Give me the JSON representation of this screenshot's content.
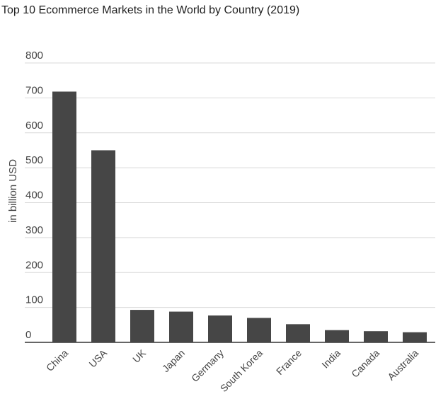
{
  "chart_data": {
    "type": "bar",
    "title": "Top 10 Ecommerce Markets in the World by Country (2019)",
    "xlabel": "",
    "ylabel": "in billion USD",
    "categories": [
      "China",
      "USA",
      "UK",
      "Japan",
      "Germany",
      "South Korea",
      "France",
      "India",
      "Canada",
      "Australia"
    ],
    "values": [
      718,
      550,
      93,
      88,
      77,
      70,
      52,
      35,
      32,
      29
    ],
    "ylim": [
      0,
      800
    ],
    "yticks": [
      "0",
      "100",
      "200",
      "300",
      "400",
      "500",
      "600",
      "700",
      "800"
    ],
    "grid": true,
    "bar_color": "#464646",
    "grid_color": "#d9d9d9",
    "axis_color": "#333333"
  }
}
